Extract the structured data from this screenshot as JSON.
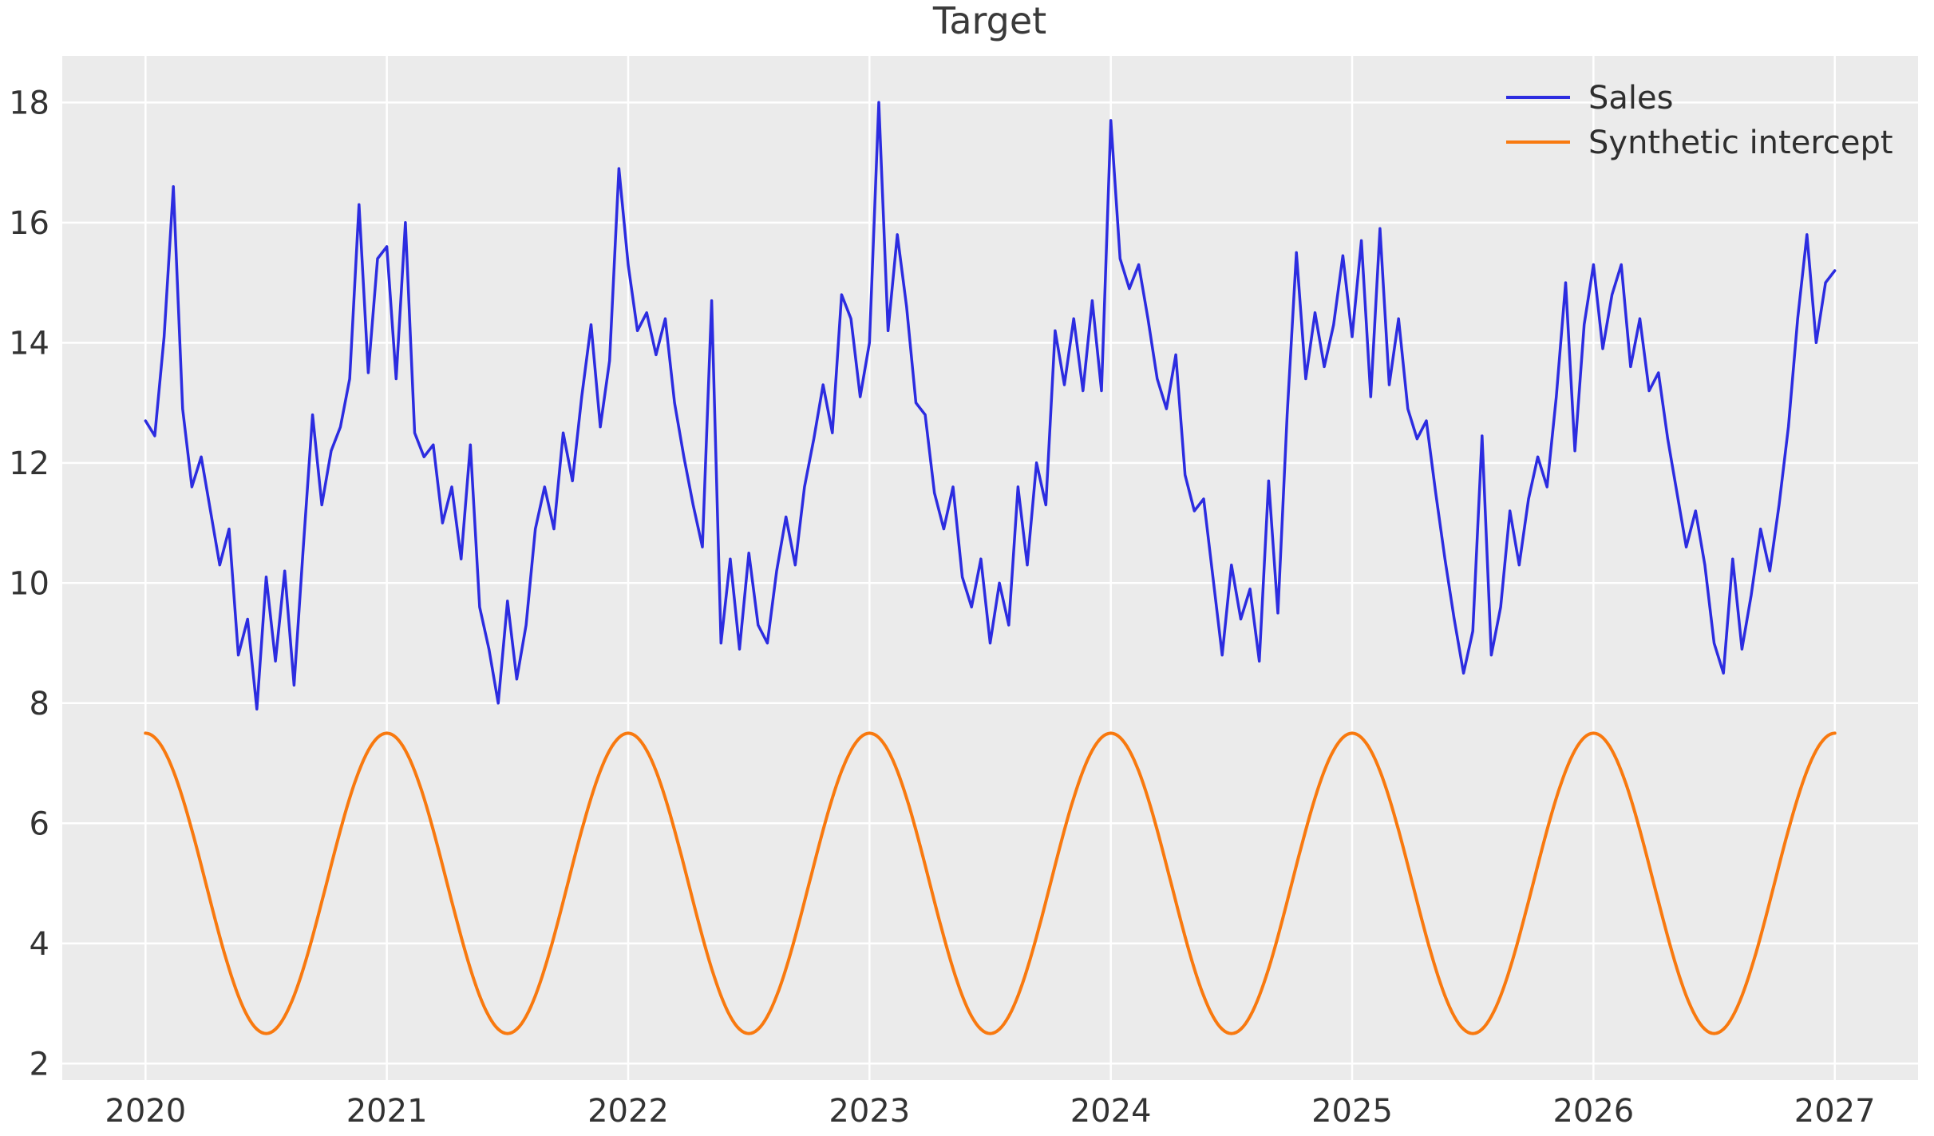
{
  "title": "Target",
  "chart_data": {
    "type": "line",
    "title": "Target",
    "x_unit": "year",
    "xlim": [
      2019.655,
      2027.345
    ],
    "ylim": [
      1.725,
      18.775
    ],
    "xticks": [
      2020,
      2021,
      2022,
      2023,
      2024,
      2025,
      2026,
      2027
    ],
    "yticks": [
      2,
      4,
      6,
      8,
      10,
      12,
      14,
      16,
      18
    ],
    "grid": true,
    "plot_background": "#ebebeb",
    "grid_color": "#ffffff",
    "text_color": "#333333",
    "legend_position": "upper right",
    "legend_frame": false,
    "series": [
      {
        "name": "Sales",
        "color": "#2c2ce0",
        "line_width": 3.5,
        "sampling": "biweekly (26 points per year), values estimated from plot",
        "start_year": 2020,
        "end_year": 2027,
        "points_per_year": 26,
        "values": [
          12.7,
          12.45,
          14.1,
          16.6,
          12.9,
          11.6,
          12.1,
          11.2,
          10.3,
          10.9,
          8.8,
          9.4,
          7.9,
          10.1,
          8.7,
          10.2,
          8.3,
          10.6,
          12.8,
          11.3,
          12.2,
          12.6,
          13.4,
          16.3,
          13.5,
          15.4,
          15.6,
          13.4,
          16.0,
          12.5,
          12.1,
          12.3,
          11.0,
          11.6,
          10.4,
          12.3,
          9.6,
          8.9,
          8.0,
          9.7,
          8.4,
          9.3,
          10.9,
          11.6,
          10.9,
          12.5,
          11.7,
          13.1,
          14.3,
          12.6,
          13.7,
          16.9,
          15.3,
          14.2,
          14.5,
          13.8,
          14.4,
          13.0,
          12.1,
          11.3,
          10.6,
          14.7,
          9.0,
          10.4,
          8.9,
          10.5,
          9.3,
          9.0,
          10.2,
          11.1,
          10.3,
          11.6,
          12.4,
          13.3,
          12.5,
          14.8,
          14.4,
          13.1,
          14.0,
          18.0,
          14.2,
          15.8,
          14.6,
          13.0,
          12.8,
          11.5,
          10.9,
          11.6,
          10.1,
          9.6,
          10.4,
          9.0,
          10.0,
          9.3,
          11.6,
          10.3,
          12.0,
          11.3,
          14.2,
          13.3,
          14.4,
          13.2,
          14.7,
          13.2,
          17.7,
          15.4,
          14.9,
          15.3,
          14.4,
          13.4,
          12.9,
          13.8,
          11.8,
          11.2,
          11.4,
          10.1,
          8.8,
          10.3,
          9.4,
          9.9,
          8.7,
          11.7,
          9.5,
          12.8,
          15.5,
          13.4,
          14.5,
          13.6,
          14.3,
          15.45,
          14.1,
          15.7,
          13.1,
          15.9,
          13.3,
          14.4,
          12.9,
          12.4,
          12.7,
          11.5,
          10.4,
          9.4,
          8.5,
          9.2,
          12.45,
          8.8,
          9.6,
          11.2,
          10.3,
          11.4,
          12.1,
          11.6,
          13.1,
          15.0,
          12.2,
          14.3,
          15.3,
          13.9,
          14.8,
          15.3,
          13.6,
          14.4,
          13.2,
          13.5,
          12.4,
          11.5,
          10.6,
          11.2,
          10.3,
          9.0,
          8.5,
          10.4,
          8.9,
          9.8,
          10.9,
          10.2,
          11.3,
          12.6,
          14.4,
          15.8,
          14.0,
          15.0,
          15.2
        ]
      },
      {
        "name": "Synthetic intercept",
        "color": "#f8790f",
        "line_width": 4,
        "kind": "sine",
        "mean": 5.0,
        "amplitude": 2.5,
        "period_years": 1,
        "phase": "cosine peaking at each year start",
        "min": 2.5,
        "max": 7.5,
        "x_start": 2020,
        "x_end": 2027
      }
    ]
  }
}
